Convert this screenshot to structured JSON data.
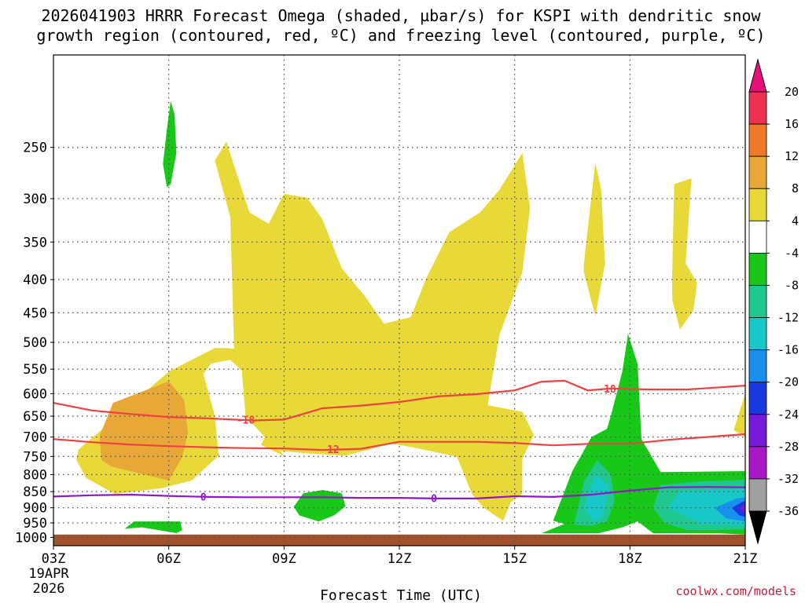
{
  "chart_data": {
    "type": "contour",
    "title_line1": "2026041903 HRRR Forecast Omega (shaded, µbar/s) for KSPI with dendritic snow",
    "title_line2": "growth region (contoured, red, ºC) and freezing level (contoured, purple, ºC)",
    "xlabel": "Forecast Time (UTC)",
    "x_ticks": [
      "03Z",
      "06Z",
      "09Z",
      "12Z",
      "15Z",
      "18Z",
      "21Z"
    ],
    "x_start_date": [
      "19APR",
      "2026"
    ],
    "x_range_hours": [
      3,
      21
    ],
    "y_ticks": [
      "250",
      "300",
      "350",
      "400",
      "450",
      "500",
      "550",
      "600",
      "650",
      "700",
      "750",
      "800",
      "850",
      "900",
      "950",
      "1000"
    ],
    "y_range_hpa": [
      1030,
      180
    ],
    "colorbar": {
      "labels": [
        "20",
        "16",
        "12",
        "8",
        "4",
        "-4",
        "-8",
        "-12",
        "-16",
        "-20",
        "-24",
        "-28",
        "-32",
        "-36"
      ],
      "colors": [
        "#f03050",
        "#f07828",
        "#e8a838",
        "#e8d838",
        "#ffffff",
        "#18c818",
        "#20c890",
        "#18c8c8",
        "#1890f0",
        "#1838e0",
        "#7818d8",
        "#a818c8",
        "#a0a0a0"
      ],
      "top_arrow": "#e8107a",
      "bottom_arrow": "#000000"
    },
    "contours": [
      {
        "name": "dendritic-top",
        "label": "-18",
        "color": "#f04040",
        "points": [
          [
            3,
            620
          ],
          [
            4,
            637
          ],
          [
            5,
            645
          ],
          [
            6,
            652
          ],
          [
            7,
            655
          ],
          [
            8.2,
            660
          ],
          [
            9,
            658
          ],
          [
            10,
            632
          ],
          [
            11,
            626
          ],
          [
            12,
            618
          ],
          [
            13,
            606
          ],
          [
            14,
            601
          ],
          [
            15,
            593
          ],
          [
            15.7,
            575
          ],
          [
            16.3,
            573
          ],
          [
            16.9,
            593
          ],
          [
            17.5,
            589
          ],
          [
            18.5,
            591
          ],
          [
            19.5,
            591
          ],
          [
            21,
            583
          ]
        ],
        "label_at": [
          [
            8.0,
            658
          ],
          [
            17.4,
            589
          ]
        ]
      },
      {
        "name": "dendritic-bottom",
        "label": "-12",
        "color": "#f04040",
        "points": [
          [
            3,
            705
          ],
          [
            4,
            713
          ],
          [
            5,
            719
          ],
          [
            6,
            723
          ],
          [
            7,
            726
          ],
          [
            8,
            728
          ],
          [
            9,
            729
          ],
          [
            10,
            733
          ],
          [
            11,
            730
          ],
          [
            12,
            712
          ],
          [
            13,
            712
          ],
          [
            14,
            712
          ],
          [
            15,
            715
          ],
          [
            16,
            721
          ],
          [
            17,
            717
          ],
          [
            18,
            717
          ],
          [
            19,
            707
          ],
          [
            20,
            700
          ],
          [
            21,
            693
          ]
        ],
        "label_at": [
          [
            10.2,
            731
          ]
        ]
      },
      {
        "name": "freezing-level",
        "label": "0",
        "color": "#9018c8",
        "points": [
          [
            3,
            865
          ],
          [
            4,
            861
          ],
          [
            5,
            859
          ],
          [
            6,
            863
          ],
          [
            7,
            866
          ],
          [
            8,
            867
          ],
          [
            9,
            867
          ],
          [
            10,
            867
          ],
          [
            11,
            869
          ],
          [
            12,
            869
          ],
          [
            13,
            871
          ],
          [
            14,
            871
          ],
          [
            15,
            864
          ],
          [
            16,
            866
          ],
          [
            17,
            859
          ],
          [
            18,
            847
          ],
          [
            19,
            837
          ],
          [
            20,
            836
          ],
          [
            21,
            837
          ]
        ],
        "label_at": [
          [
            6.9,
            865
          ],
          [
            12.9,
            870
          ]
        ]
      }
    ],
    "shaded_regions": [
      {
        "name": "omega-plus4-main",
        "color": "#e8d838",
        "points": [
          [
            3.65,
            732
          ],
          [
            4.8,
            640
          ],
          [
            6,
            555
          ],
          [
            7.2,
            510
          ],
          [
            7.55,
            510
          ],
          [
            7.7,
            512
          ],
          [
            7.6,
            320
          ],
          [
            7.2,
            262
          ],
          [
            7.5,
            245
          ],
          [
            8.1,
            315
          ],
          [
            8.6,
            328
          ],
          [
            9.0,
            295
          ],
          [
            9.6,
            299
          ],
          [
            10.0,
            323
          ],
          [
            10.5,
            384
          ],
          [
            11.1,
            424
          ],
          [
            11.6,
            468
          ],
          [
            12.3,
            457
          ],
          [
            12.7,
            398
          ],
          [
            13.3,
            338
          ],
          [
            14.1,
            315
          ],
          [
            14.6,
            291
          ],
          [
            15.2,
            255
          ],
          [
            15.4,
            310
          ],
          [
            15.2,
            390
          ],
          [
            14.6,
            488
          ],
          [
            14.3,
            625
          ],
          [
            15.2,
            640
          ],
          [
            15.5,
            695
          ],
          [
            15.2,
            757
          ],
          [
            15.2,
            857
          ],
          [
            14.9,
            882
          ],
          [
            14.7,
            943
          ],
          [
            14.2,
            900
          ],
          [
            13.9,
            860
          ],
          [
            13.5,
            751
          ],
          [
            12.5,
            729
          ],
          [
            11.8,
            716
          ],
          [
            10.6,
            748
          ],
          [
            9.5,
            741
          ],
          [
            8.9,
            735
          ],
          [
            9.0,
            749
          ],
          [
            8.4,
            720
          ],
          [
            8.5,
            700
          ],
          [
            8.0,
            650
          ],
          [
            7.9,
            553
          ],
          [
            7.6,
            532
          ],
          [
            7.1,
            539
          ],
          [
            6.9,
            559
          ],
          [
            7.2,
            649
          ],
          [
            7.3,
            748
          ],
          [
            6.6,
            817
          ],
          [
            5.8,
            840
          ],
          [
            4.6,
            857
          ],
          [
            3.85,
            810
          ],
          [
            3.6,
            760
          ]
        ]
      },
      {
        "name": "omega-plus4-spike-17z",
        "color": "#e8d838",
        "points": [
          [
            16.8,
            378
          ],
          [
            16.95,
            315
          ],
          [
            17.1,
            264
          ],
          [
            17.25,
            290
          ],
          [
            17.35,
            378
          ],
          [
            17.1,
            455
          ],
          [
            16.8,
            390
          ]
        ]
      },
      {
        "name": "omega-plus4-spike-19z",
        "color": "#e8d838",
        "points": [
          [
            19.1,
            390
          ],
          [
            19.15,
            285
          ],
          [
            19.6,
            279
          ],
          [
            19.45,
            378
          ],
          [
            19.75,
            405
          ],
          [
            19.65,
            446
          ],
          [
            19.3,
            478
          ],
          [
            19.1,
            430
          ]
        ]
      },
      {
        "name": "omega-plus4-corner",
        "color": "#e8d838",
        "points": [
          [
            20.7,
            683
          ],
          [
            21.0,
            600
          ],
          [
            21.0,
            700
          ]
        ]
      },
      {
        "name": "omega-plus8",
        "color": "#e8a838",
        "points": [
          [
            4.2,
            697
          ],
          [
            4.55,
            620
          ],
          [
            6,
            574
          ],
          [
            6.4,
            613
          ],
          [
            6.5,
            690
          ],
          [
            6.35,
            752
          ],
          [
            6,
            817
          ],
          [
            5.1,
            793
          ],
          [
            4.5,
            777
          ],
          [
            4.25,
            760
          ]
        ]
      },
      {
        "name": "omega-minus4-top",
        "color": "#18c818",
        "points": [
          [
            5.85,
            265
          ],
          [
            5.95,
            235
          ],
          [
            6.05,
            212
          ],
          [
            6.15,
            222
          ],
          [
            6.2,
            255
          ],
          [
            6.05,
            285
          ],
          [
            5.95,
            288
          ]
        ]
      },
      {
        "name": "omega-minus4-10z",
        "color": "#18c818",
        "points": [
          [
            9.25,
            897
          ],
          [
            9.5,
            855
          ],
          [
            10.0,
            845
          ],
          [
            10.5,
            855
          ],
          [
            10.6,
            895
          ],
          [
            10.3,
            925
          ],
          [
            9.9,
            945
          ],
          [
            9.4,
            925
          ]
        ]
      },
      {
        "name": "omega-minus4-0530z",
        "color": "#18c818",
        "points": [
          [
            4.85,
            970
          ],
          [
            5.1,
            945
          ],
          [
            6.3,
            945
          ],
          [
            6.35,
            975
          ],
          [
            6.2,
            985
          ],
          [
            5.3,
            965
          ]
        ]
      },
      {
        "name": "omega-minus4-east",
        "color": "#18c818",
        "points": [
          [
            15.7,
            985
          ],
          [
            16.3,
            953
          ],
          [
            16.0,
            943
          ],
          [
            16.5,
            790
          ],
          [
            17,
            700
          ],
          [
            17.4,
            680
          ],
          [
            17.5,
            650
          ],
          [
            17.8,
            555
          ],
          [
            17.95,
            485
          ],
          [
            18.2,
            540
          ],
          [
            18.3,
            705
          ],
          [
            18.8,
            793
          ],
          [
            21,
            790
          ],
          [
            21,
            990
          ],
          [
            20.2,
            985
          ],
          [
            18.6,
            985
          ],
          [
            18.2,
            945
          ],
          [
            17.8,
            965
          ],
          [
            17.2,
            985
          ]
        ]
      },
      {
        "name": "omega-minus8-east",
        "color": "#20c890",
        "points": [
          [
            16.55,
            955
          ],
          [
            16.8,
            820
          ],
          [
            17.15,
            760
          ],
          [
            17.5,
            800
          ],
          [
            17.6,
            880
          ],
          [
            17.4,
            945
          ],
          [
            17,
            960
          ],
          [
            16.7,
            958
          ]
        ]
      },
      {
        "name": "omega-minus8-east2",
        "color": "#20c890",
        "points": [
          [
            18.6,
            900
          ],
          [
            18.8,
            830
          ],
          [
            19.8,
            820
          ],
          [
            21,
            815
          ],
          [
            21,
            972
          ],
          [
            19.5,
            975
          ],
          [
            18.9,
            950
          ]
        ]
      },
      {
        "name": "omega-minus12-east",
        "color": "#18c8c8",
        "points": [
          [
            16.8,
            900
          ],
          [
            17.1,
            800
          ],
          [
            17.45,
            830
          ],
          [
            17.3,
            930
          ],
          [
            17.05,
            945
          ]
        ]
      },
      {
        "name": "omega-minus12-east2",
        "color": "#18c8c8",
        "points": [
          [
            19.0,
            900
          ],
          [
            19.3,
            850
          ],
          [
            21,
            840
          ],
          [
            21,
            960
          ],
          [
            19.8,
            952
          ]
        ]
      },
      {
        "name": "omega-minus16-east",
        "color": "#1890f0",
        "points": [
          [
            20.2,
            900
          ],
          [
            20.8,
            870
          ],
          [
            21,
            868
          ],
          [
            21,
            945
          ],
          [
            20.5,
            935
          ]
        ]
      },
      {
        "name": "omega-minus20-east",
        "color": "#1838e0",
        "points": [
          [
            20.65,
            900
          ],
          [
            20.95,
            880
          ],
          [
            21,
            880
          ],
          [
            21,
            930
          ],
          [
            20.85,
            925
          ]
        ]
      },
      {
        "name": "omega-minus24-east",
        "color": "#7818d8",
        "points": [
          [
            20.85,
            900
          ],
          [
            21,
            888
          ],
          [
            21,
            918
          ],
          [
            20.9,
            912
          ]
        ]
      }
    ],
    "surface_band": {
      "color": "#a0522d",
      "from_hpa": 1030,
      "to_hpa": 990
    },
    "credit": "coolwx.com/models"
  }
}
